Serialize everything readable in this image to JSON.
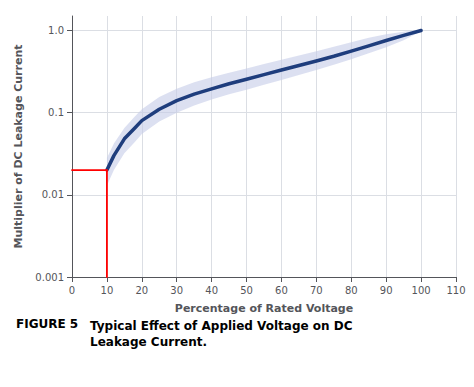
{
  "chart_data": {
    "type": "line",
    "xlabel": "Percentage of Rated Voltage",
    "ylabel": "Multiplier of DC Leakage Current",
    "log": "y",
    "grid": true,
    "xlim": [
      0,
      110
    ],
    "ylim": [
      0.001,
      1.5
    ],
    "xticks": [
      0,
      10,
      20,
      30,
      40,
      50,
      60,
      70,
      80,
      90,
      100,
      110
    ],
    "yticks": [
      0.001,
      0.01,
      0.1,
      {
        "value": 1.0,
        "label": "1.0"
      }
    ],
    "x": [
      10,
      12,
      15,
      18,
      20,
      25,
      30,
      35,
      40,
      45,
      50,
      55,
      60,
      65,
      70,
      75,
      80,
      85,
      90,
      95,
      100
    ],
    "series": [
      {
        "type": "band",
        "color": "#c5cce8",
        "lower": [
          0.013,
          0.02,
          0.032,
          0.044,
          0.055,
          0.078,
          0.1,
          0.122,
          0.145,
          0.167,
          0.19,
          0.218,
          0.25,
          0.288,
          0.33,
          0.382,
          0.448,
          0.53,
          0.625,
          0.76,
          0.975
        ],
        "upper": [
          0.028,
          0.042,
          0.065,
          0.09,
          0.11,
          0.155,
          0.195,
          0.235,
          0.27,
          0.305,
          0.345,
          0.39,
          0.44,
          0.495,
          0.56,
          0.635,
          0.72,
          0.815,
          0.9,
          0.965,
          1.02
        ]
      },
      {
        "type": "line",
        "color": "#1e3d7d",
        "values": [
          0.02,
          0.03,
          0.048,
          0.065,
          0.08,
          0.11,
          0.14,
          0.168,
          0.195,
          0.225,
          0.255,
          0.29,
          0.33,
          0.375,
          0.425,
          0.485,
          0.56,
          0.65,
          0.755,
          0.87,
          1.0
        ]
      },
      {
        "type": "line",
        "color": "#ff0000",
        "x": [
          0,
          10
        ],
        "values": [
          0.02,
          0.02
        ]
      },
      {
        "type": "line",
        "color": "#ff0000",
        "x": [
          10,
          10
        ],
        "values": [
          0.001,
          0.02
        ]
      }
    ],
    "annotations": [
      "FIGURE 5",
      "Typical Effect of Applied Voltage on DC",
      "Leakage Current."
    ]
  }
}
